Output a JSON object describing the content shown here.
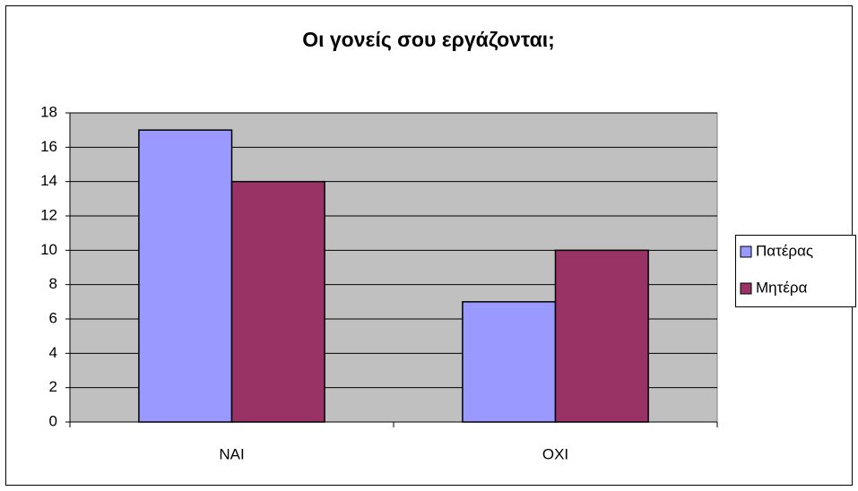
{
  "chart_data": {
    "type": "bar",
    "title": "Οι γονείς σου εργάζονται;",
    "categories": [
      "NAI",
      "OXI"
    ],
    "series": [
      {
        "name": "Πατέρας",
        "color": "#9999ff",
        "values": [
          17,
          7
        ]
      },
      {
        "name": "Μητέρα",
        "color": "#993366",
        "values": [
          14,
          10
        ]
      }
    ],
    "ylim": [
      0,
      18
    ],
    "yticks": [
      0,
      2,
      4,
      6,
      8,
      10,
      12,
      14,
      16,
      18
    ],
    "grid": true,
    "legend": "right",
    "plot_background": "#c0c0c0"
  }
}
